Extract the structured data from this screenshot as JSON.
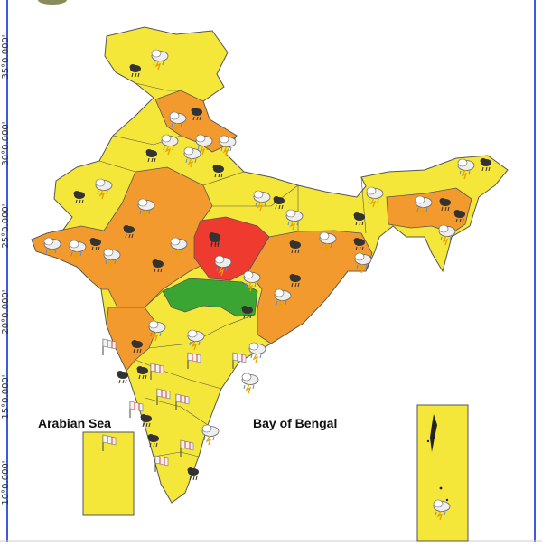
{
  "latitude_labels": [
    "35°0.000'",
    "30°0.000'",
    "25°0.000'",
    "20°0.000'",
    "15°0.000'",
    "10°0.000'"
  ],
  "sea_labels": {
    "arabian_sea": "Arabian Sea",
    "bay_of_bengal": "Bay of Bengal"
  },
  "colors": {
    "yellow": "#f5e63a",
    "orange": "#f39a2e",
    "red": "#ee3a2f",
    "green": "#3aa533",
    "border": "#555555",
    "frame_blue": "#3b5bdb"
  },
  "warning_legend": {
    "yellow": "Yellow",
    "orange": "Orange",
    "red": "Red",
    "green": "Green"
  },
  "icons": {
    "thunderstorm_rain": "thunderstorm-rain-icon",
    "heavy_rain_cloud": "heavy-rain-cloud-icon",
    "strong_wind": "windsock-icon"
  }
}
